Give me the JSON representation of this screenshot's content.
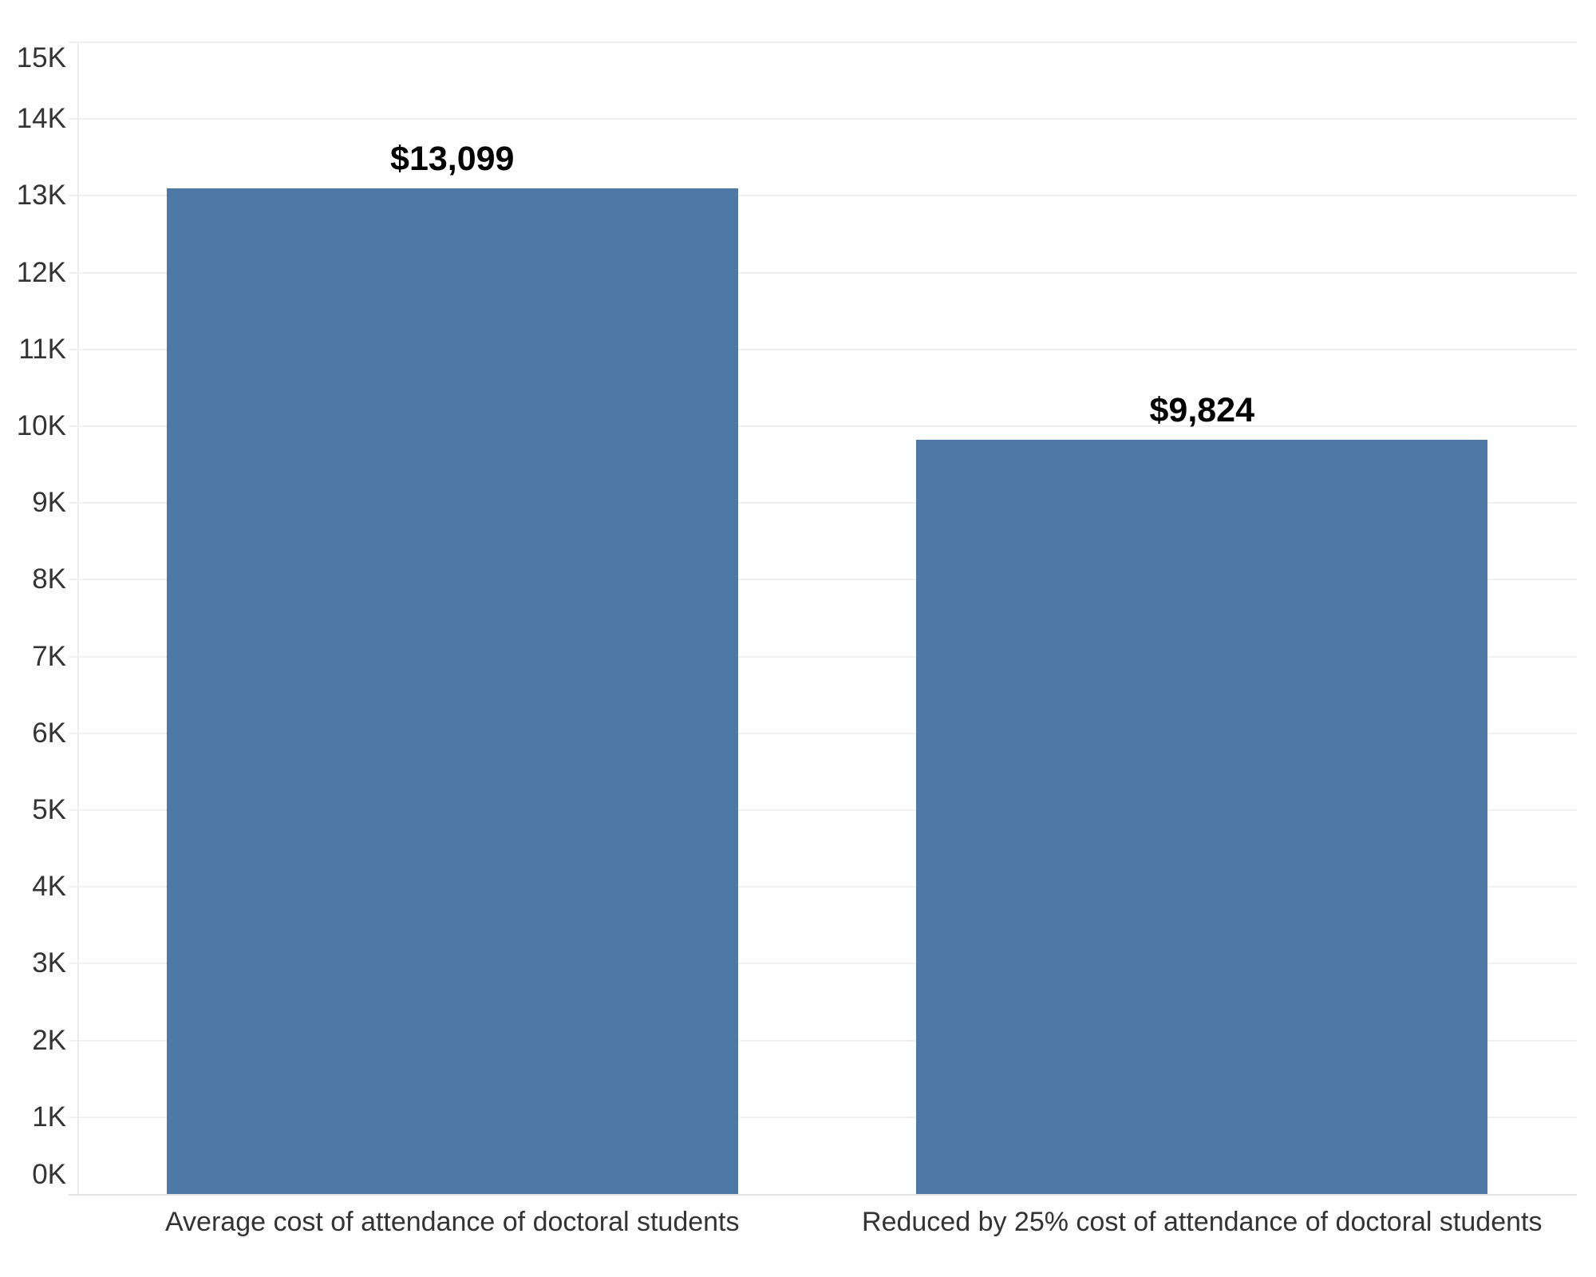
{
  "chart_data": {
    "type": "bar",
    "title": "",
    "xlabel": "",
    "ylabel": "",
    "categories": [
      "Average cost of attendance of doctoral students",
      "Reduced by 25% cost of attendance of doctoral students"
    ],
    "values": [
      13099,
      9824
    ],
    "bar_labels": [
      "$13,099",
      "$9,824"
    ],
    "ylim": [
      0,
      15000
    ],
    "ytick_interval": 1000,
    "ytick_labels": [
      "0K",
      "1K",
      "2K",
      "3K",
      "4K",
      "5K",
      "6K",
      "7K",
      "8K",
      "9K",
      "10K",
      "11K",
      "12K",
      "13K",
      "14K",
      "15K"
    ],
    "grid": "horizontal",
    "legend": "none",
    "bar_color": "#4e79a7",
    "colors": {
      "background": "#ffffff",
      "gridline": "#f0f0f0",
      "axis_line": "#e4e4e4",
      "y_axis_line": "#ececec",
      "tick_label": "#333333",
      "category_label": "#333333",
      "value_label": "#000000"
    }
  }
}
